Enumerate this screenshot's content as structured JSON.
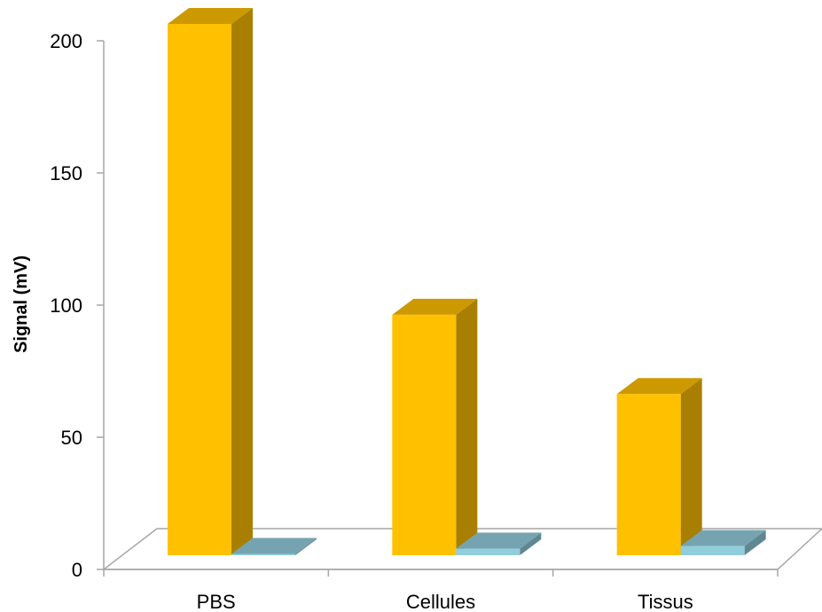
{
  "chart_data": {
    "type": "bar",
    "style": "3d-column",
    "categories": [
      "PBS",
      "Cellules",
      "Tissus"
    ],
    "series": [
      {
        "values": [
          201,
          91,
          61
        ],
        "color": "#ffc000"
      },
      {
        "values": [
          0.5,
          2.5,
          3.5
        ],
        "color": "#92cddc"
      }
    ],
    "title": "",
    "xlabel": "",
    "ylabel": "Signal (mV)",
    "ylim": [
      0,
      200
    ],
    "yticks": [
      "0",
      "50",
      "100",
      "150",
      "200"
    ],
    "grid": false,
    "legend": "none"
  }
}
